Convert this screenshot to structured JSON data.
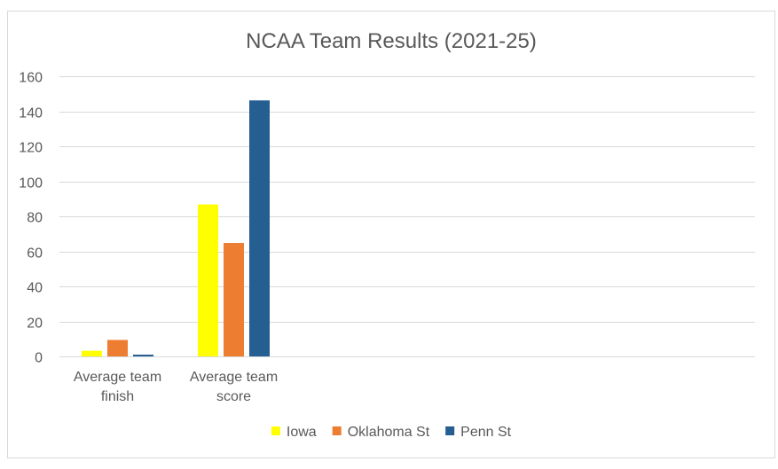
{
  "chart_data": {
    "type": "bar",
    "title": "NCAA Team Results (2021-25)",
    "xlabel": "",
    "ylabel": "",
    "categories": [
      "Average team finish",
      "Average team score"
    ],
    "category_lines": [
      [
        "Average team",
        "finish"
      ],
      [
        "Average team",
        "score"
      ]
    ],
    "series": [
      {
        "name": "Iowa",
        "values": [
          3.2,
          86.8
        ],
        "color": "#FFFF00"
      },
      {
        "name": "Oklahoma St",
        "values": [
          9.4,
          64.8
        ],
        "color": "#ED7D31"
      },
      {
        "name": "Penn St",
        "values": [
          1.0,
          146.2
        ],
        "color": "#255E91"
      }
    ],
    "ylim": [
      0,
      160
    ],
    "yticks": [
      0,
      20,
      40,
      60,
      80,
      100,
      120,
      140,
      160
    ],
    "grid": true,
    "legend_position": "bottom"
  }
}
